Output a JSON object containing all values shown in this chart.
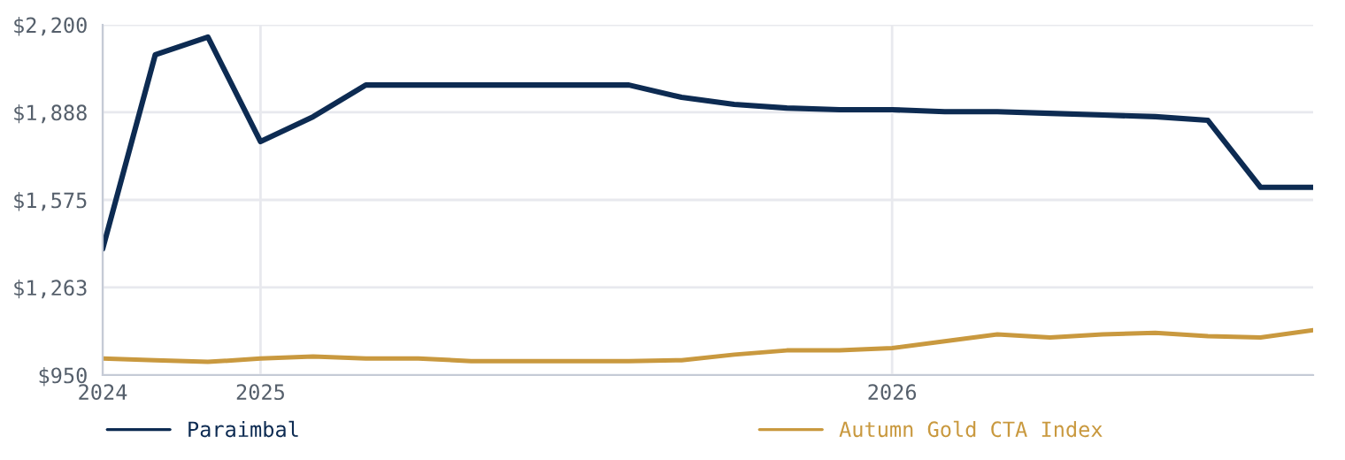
{
  "chart_data": {
    "type": "line",
    "categories": [
      "2024",
      null,
      null,
      "2025",
      null,
      null,
      null,
      null,
      null,
      null,
      null,
      null,
      null,
      null,
      null,
      "2026",
      null,
      null,
      null,
      null,
      null,
      null,
      null,
      null
    ],
    "series": [
      {
        "name": "Paraimbal",
        "color": "#0d2b52",
        "values": [
          1400,
          2093,
          2156,
          1783,
          1872,
          1985,
          1985,
          1985,
          1985,
          1985,
          1985,
          1941,
          1916,
          1903,
          1897,
          1897,
          1890,
          1890,
          1884,
          1878,
          1872,
          1859,
          1620,
          1620
        ]
      },
      {
        "name": "Autumn Gold CTA Index",
        "color": "#c9993f",
        "values": [
          1009,
          1003,
          997,
          1009,
          1016,
          1009,
          1009,
          1000,
          1000,
          1000,
          1000,
          1003,
          1023,
          1038,
          1038,
          1046,
          1071,
          1095,
          1084,
          1095,
          1101,
          1089,
          1084,
          1110
        ]
      }
    ],
    "ylim": [
      950,
      2200
    ],
    "yticks": [
      {
        "value": 950,
        "label": "$950"
      },
      {
        "value": 1263,
        "label": "$1,263"
      },
      {
        "value": 1575,
        "label": "$1,575"
      },
      {
        "value": 1888,
        "label": "$1,888"
      },
      {
        "value": 2200,
        "label": "$2,200"
      }
    ],
    "grid": true,
    "legend": "bottom",
    "marker": "none",
    "line_style": "solid"
  }
}
